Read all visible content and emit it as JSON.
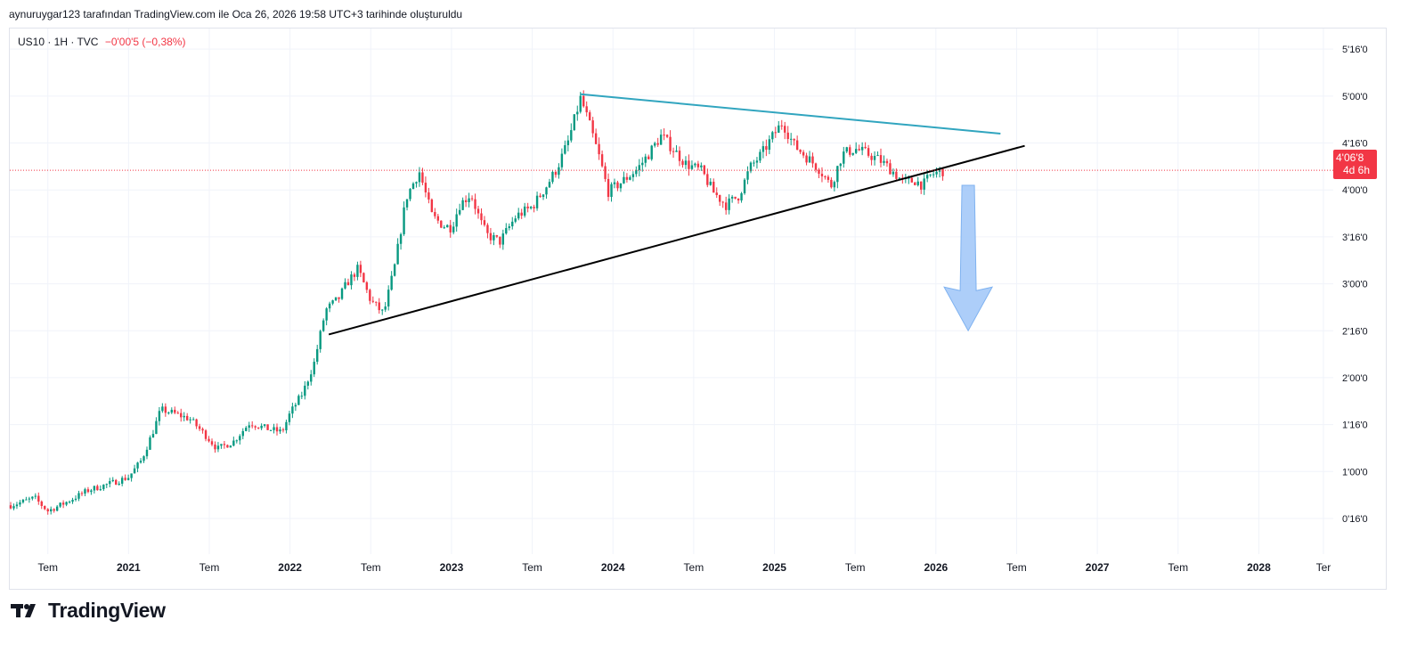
{
  "header": {
    "attribution": "aynuruygar123 tarafından TradingView.com ile Oca 26, 2026 19:58 UTC+3 tarihinde oluşturuldu"
  },
  "symbol": {
    "label": "US10 · 1H · TVC",
    "change": "−0'00'5 (−0,38%)"
  },
  "brand": {
    "name": "TradingView",
    "icon": "tradingview-logo-icon"
  },
  "colors": {
    "up": "#089981",
    "down": "#f23645",
    "resistance_line": "#31a5bf",
    "support_line": "#000000",
    "arrow": "#9fc5f8",
    "price_line": "#f23645"
  },
  "chart_data": {
    "type": "candlestick",
    "title": "US10 · 1H · TVC",
    "xlabel": "",
    "ylabel": "",
    "x_axis_ticks": [
      "Tem",
      "2021",
      "Tem",
      "2022",
      "Tem",
      "2023",
      "Tem",
      "2024",
      "Tem",
      "2025",
      "Tem",
      "2026",
      "Tem",
      "2027",
      "Tem",
      "2028",
      "Ter"
    ],
    "x_axis_tick_dates": [
      2020.5,
      2021.0,
      2021.5,
      2022.0,
      2022.5,
      2023.0,
      2023.5,
      2024.0,
      2024.5,
      2025.0,
      2025.5,
      2026.0,
      2026.5,
      2027.0,
      2027.5,
      2028.0,
      2028.4
    ],
    "bold_ticks": [
      "2021",
      "2022",
      "2023",
      "2024",
      "2025",
      "2026",
      "2027",
      "2028"
    ],
    "y_axis_ticks": [
      "5'16'0",
      "5'00'0",
      "4'16'0",
      "4'00'0",
      "3'16'0",
      "3'00'0",
      "2'16'0",
      "2'00'0",
      "1'16'0",
      "1'00'0",
      "0'16'0"
    ],
    "y_axis_tick_values": [
      5.5,
      5.0,
      4.5,
      4.0,
      3.5,
      3.0,
      2.5,
      2.0,
      1.5,
      1.0,
      0.5
    ],
    "xlim": [
      2020.27,
      2028.45
    ],
    "ylim": [
      0.12,
      5.72
    ],
    "current_price": {
      "label": "4'06'8",
      "countdown": "4d 6h",
      "value": 4.21
    },
    "price_path": [
      [
        2020.27,
        0.64
      ],
      [
        2020.35,
        0.68
      ],
      [
        2020.42,
        0.72
      ],
      [
        2020.45,
        0.66
      ],
      [
        2020.5,
        0.58
      ],
      [
        2020.6,
        0.66
      ],
      [
        2020.75,
        0.8
      ],
      [
        2020.9,
        0.88
      ],
      [
        2021.0,
        0.94
      ],
      [
        2021.08,
        1.12
      ],
      [
        2021.15,
        1.42
      ],
      [
        2021.2,
        1.66
      ],
      [
        2021.28,
        1.62
      ],
      [
        2021.38,
        1.56
      ],
      [
        2021.48,
        1.38
      ],
      [
        2021.55,
        1.24
      ],
      [
        2021.65,
        1.32
      ],
      [
        2021.75,
        1.52
      ],
      [
        2021.85,
        1.46
      ],
      [
        2021.95,
        1.42
      ],
      [
        2022.0,
        1.62
      ],
      [
        2022.08,
        1.84
      ],
      [
        2022.15,
        2.16
      ],
      [
        2022.22,
        2.72
      ],
      [
        2022.3,
        2.84
      ],
      [
        2022.35,
        3.0
      ],
      [
        2022.42,
        3.16
      ],
      [
        2022.5,
        2.82
      ],
      [
        2022.58,
        2.68
      ],
      [
        2022.65,
        3.2
      ],
      [
        2022.72,
        3.92
      ],
      [
        2022.8,
        4.2
      ],
      [
        2022.88,
        3.72
      ],
      [
        2022.95,
        3.62
      ],
      [
        2023.0,
        3.6
      ],
      [
        2023.05,
        3.84
      ],
      [
        2023.12,
        3.96
      ],
      [
        2023.18,
        3.66
      ],
      [
        2023.22,
        3.52
      ],
      [
        2023.3,
        3.45
      ],
      [
        2023.4,
        3.72
      ],
      [
        2023.5,
        3.82
      ],
      [
        2023.58,
        4.02
      ],
      [
        2023.65,
        4.22
      ],
      [
        2023.72,
        4.5
      ],
      [
        2023.8,
        4.98
      ],
      [
        2023.85,
        4.72
      ],
      [
        2023.92,
        4.32
      ],
      [
        2023.97,
        3.98
      ],
      [
        2024.05,
        4.08
      ],
      [
        2024.15,
        4.22
      ],
      [
        2024.22,
        4.38
      ],
      [
        2024.3,
        4.58
      ],
      [
        2024.38,
        4.42
      ],
      [
        2024.45,
        4.28
      ],
      [
        2024.55,
        4.2
      ],
      [
        2024.62,
        3.98
      ],
      [
        2024.7,
        3.84
      ],
      [
        2024.78,
        3.94
      ],
      [
        2024.85,
        4.24
      ],
      [
        2024.92,
        4.38
      ],
      [
        2025.0,
        4.6
      ],
      [
        2025.05,
        4.72
      ],
      [
        2025.12,
        4.48
      ],
      [
        2025.2,
        4.35
      ],
      [
        2025.28,
        4.22
      ],
      [
        2025.35,
        4.04
      ],
      [
        2025.42,
        4.38
      ],
      [
        2025.5,
        4.44
      ],
      [
        2025.58,
        4.38
      ],
      [
        2025.65,
        4.32
      ],
      [
        2025.72,
        4.22
      ],
      [
        2025.8,
        4.08
      ],
      [
        2025.87,
        4.1
      ],
      [
        2025.92,
        4.05
      ],
      [
        2025.97,
        4.16
      ],
      [
        2026.03,
        4.2
      ],
      [
        2026.06,
        4.21
      ]
    ],
    "trendlines": [
      {
        "name": "resistance",
        "points": [
          [
            2023.8,
            5.02
          ],
          [
            2026.4,
            4.6
          ]
        ]
      },
      {
        "name": "support",
        "points": [
          [
            2022.24,
            2.46
          ],
          [
            2026.55,
            4.47
          ]
        ]
      }
    ],
    "annotations": [
      {
        "type": "down-arrow",
        "x": 2026.2,
        "from": 4.05,
        "to": 2.5
      }
    ]
  }
}
